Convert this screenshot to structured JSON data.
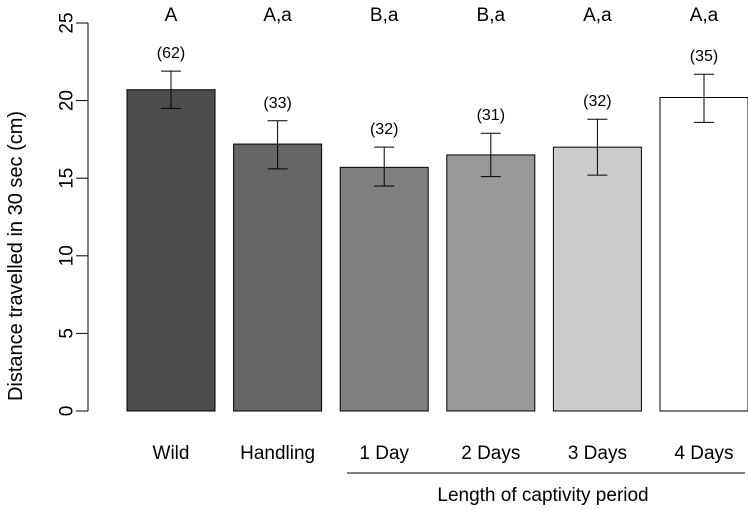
{
  "chart_data": {
    "type": "bar",
    "ylabel": "Distance travelled in 30 sec (cm)",
    "xgroup_label": "Length of captivity period",
    "ylim": [
      0,
      25
    ],
    "yticks": [
      0,
      5,
      10,
      15,
      20,
      25
    ],
    "ytick_labels": [
      "0",
      "5",
      "10",
      "15",
      "20",
      "25"
    ],
    "categories": [
      "Wild",
      "Handling",
      "1 Day",
      "2 Days",
      "3 Days",
      "4 Days"
    ],
    "values": [
      20.7,
      17.2,
      15.7,
      16.5,
      17.0,
      20.2
    ],
    "error_low": [
      19.5,
      15.6,
      14.5,
      15.1,
      15.2,
      18.6
    ],
    "error_high": [
      21.9,
      18.7,
      17.0,
      17.9,
      18.8,
      21.7
    ],
    "sample_sizes": [
      "(62)",
      "(33)",
      "(32)",
      "(31)",
      "(32)",
      "(35)"
    ],
    "significance_letters": [
      "A",
      "A,a",
      "B,a",
      "B,a",
      "A,a",
      "A,a"
    ],
    "bar_colors": [
      "#4d4d4d",
      "#666666",
      "#808080",
      "#999999",
      "#cccccc",
      "#ffffff"
    ],
    "grid": false
  }
}
